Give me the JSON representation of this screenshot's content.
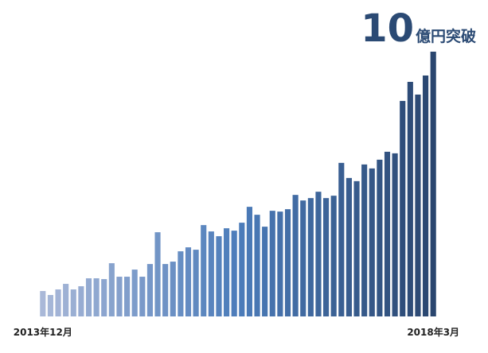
{
  "chart_data": {
    "type": "bar",
    "title_number": "10",
    "title_suffix": "億円突破",
    "categories": [
      "2013年12月",
      null,
      null,
      null,
      null,
      null,
      null,
      null,
      null,
      null,
      null,
      null,
      null,
      null,
      null,
      null,
      null,
      null,
      null,
      null,
      null,
      null,
      null,
      null,
      null,
      null,
      null,
      null,
      null,
      null,
      null,
      null,
      null,
      null,
      null,
      null,
      null,
      null,
      null,
      null,
      null,
      null,
      null,
      null,
      null,
      null,
      null,
      null,
      null,
      null,
      null,
      "2018年3月"
    ],
    "values": [
      0.96,
      0.81,
      1.02,
      1.23,
      1.02,
      1.14,
      1.44,
      1.44,
      1.41,
      2.01,
      1.5,
      1.5,
      1.77,
      1.5,
      1.98,
      3.18,
      1.98,
      2.07,
      2.46,
      2.61,
      2.52,
      3.45,
      3.21,
      3.03,
      3.33,
      3.24,
      3.54,
      4.14,
      3.84,
      3.39,
      3.99,
      3.96,
      4.05,
      4.59,
      4.38,
      4.47,
      4.71,
      4.47,
      4.56,
      5.8,
      5.23,
      5.11,
      5.74,
      5.59,
      5.92,
      6.22,
      6.16,
      8.14,
      8.86,
      8.38,
      9.1,
      10
    ],
    "colors": [
      "#a9b8d8",
      "#4c7cba",
      "#2a466f"
    ],
    "ylim": [
      0,
      10
    ]
  }
}
